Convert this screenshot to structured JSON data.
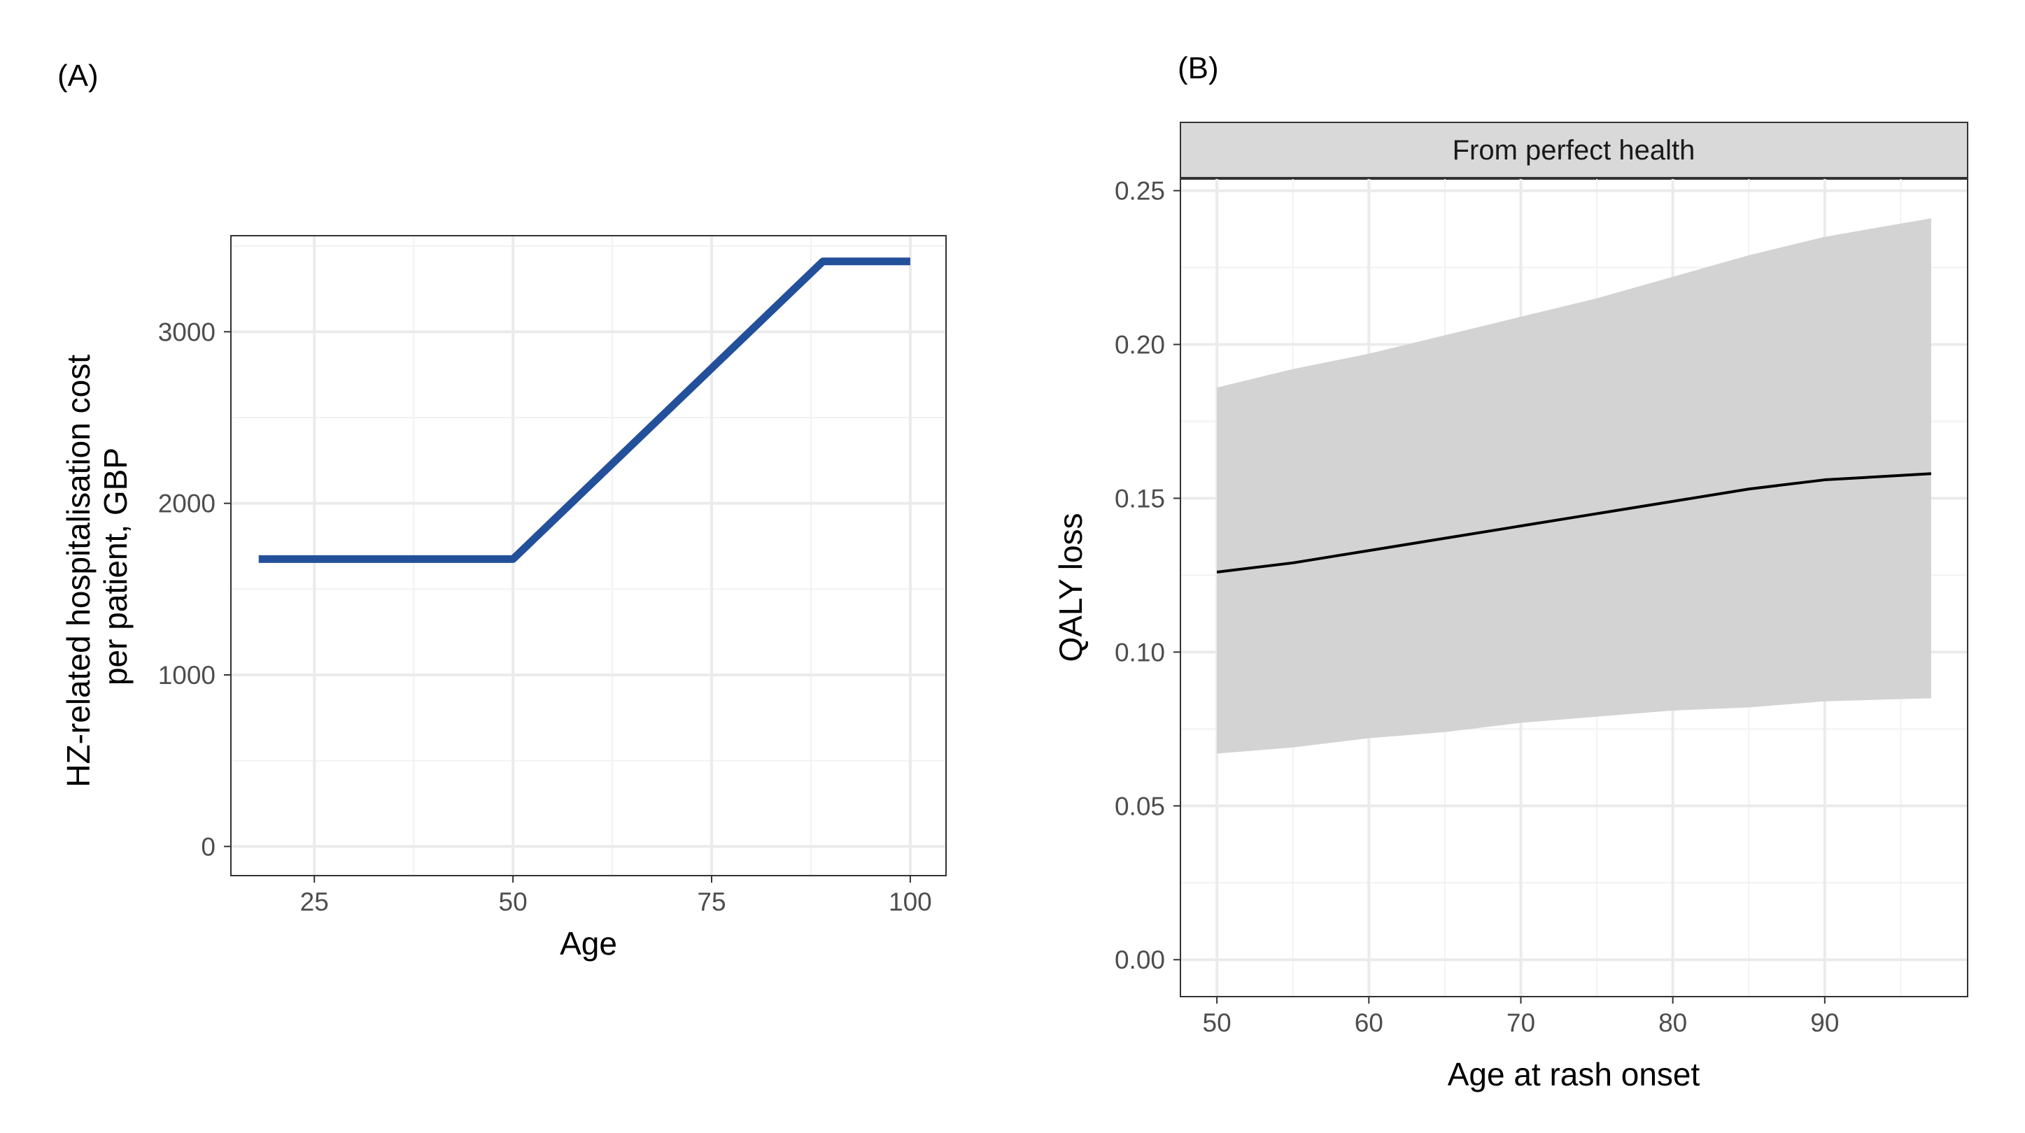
{
  "panels": [
    {
      "tag": "(A)"
    },
    {
      "tag": "(B)"
    }
  ],
  "chart_data": [
    {
      "type": "line",
      "xlabel": "Age",
      "ylabel_lines": [
        "HZ-related hospitalisation cost",
        "per patient, GBP"
      ],
      "xlim": [
        14.5,
        104.5
      ],
      "ylim": [
        -170,
        3560
      ],
      "xticks": [
        25,
        50,
        75,
        100
      ],
      "yticks": [
        0,
        1000,
        2000,
        3000
      ],
      "grid": true,
      "series": [
        {
          "color": "#23509a",
          "x": [
            18,
            50,
            89,
            100
          ],
          "y": [
            1675,
            1675,
            3410,
            3410
          ]
        }
      ]
    },
    {
      "type": "line",
      "xlabel": "Age at rash onset",
      "ylabel": "QALY loss",
      "facet_label": "From perfect health",
      "xlim": [
        47.6,
        99.4
      ],
      "ylim": [
        -0.012,
        0.254
      ],
      "xticks": [
        50,
        60,
        70,
        80,
        90
      ],
      "yticks": [
        0.0,
        0.05,
        0.1,
        0.15,
        0.2,
        0.25
      ],
      "ytick_labels": [
        "0.00",
        "0.05",
        "0.10",
        "0.15",
        "0.20",
        "0.25"
      ],
      "grid": true,
      "ribbon_color": "#d3d3d3",
      "series": [
        {
          "color": "#000000",
          "x": [
            50,
            55,
            60,
            65,
            70,
            75,
            80,
            85,
            90,
            97
          ],
          "y": [
            0.126,
            0.129,
            0.133,
            0.137,
            0.141,
            0.145,
            0.149,
            0.153,
            0.156,
            0.158
          ],
          "lower": [
            0.067,
            0.069,
            0.072,
            0.074,
            0.077,
            0.079,
            0.081,
            0.082,
            0.084,
            0.085
          ],
          "upper": [
            0.186,
            0.192,
            0.197,
            0.203,
            0.209,
            0.215,
            0.222,
            0.229,
            0.235,
            0.241
          ]
        }
      ]
    }
  ]
}
